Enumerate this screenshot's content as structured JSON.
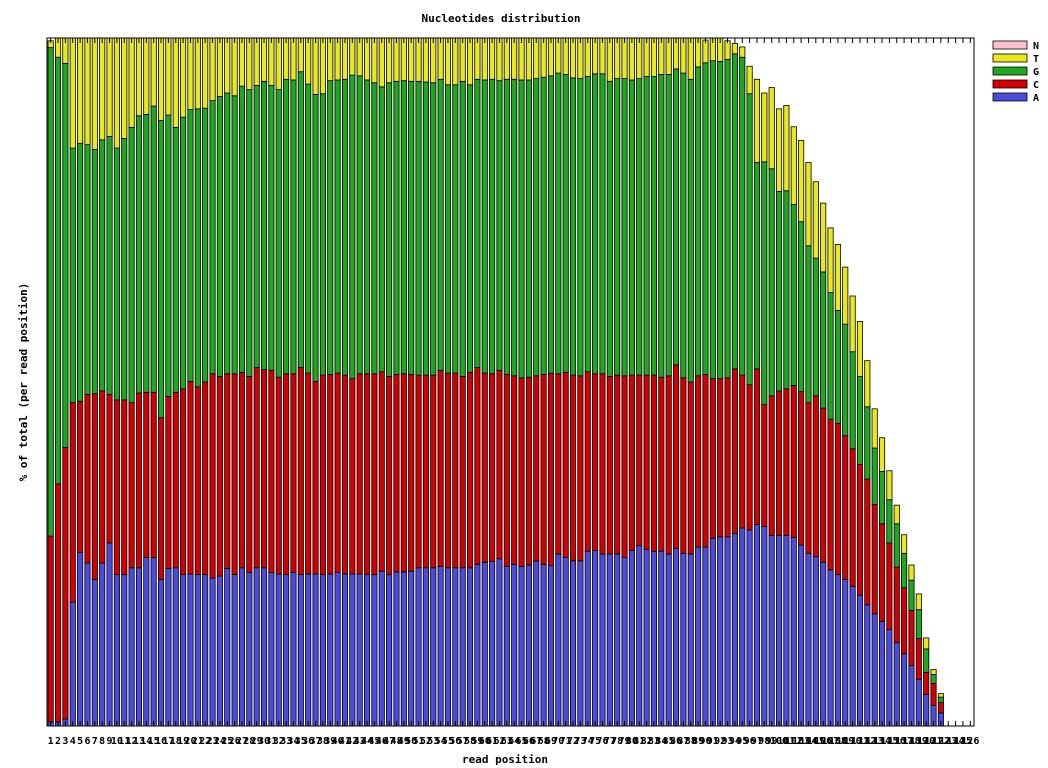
{
  "chart_data": {
    "type": "bar",
    "stacked": true,
    "title": "Nucleotides distribution",
    "xlabel": "read position",
    "ylabel": "% of total (per read position)",
    "ylim": [
      0,
      100
    ],
    "grid": false,
    "legend_placement": "top-right",
    "x": [
      1,
      2,
      3,
      4,
      5,
      6,
      7,
      8,
      9,
      10,
      11,
      12,
      13,
      14,
      15,
      16,
      17,
      18,
      19,
      20,
      21,
      22,
      23,
      24,
      25,
      26,
      27,
      28,
      29,
      30,
      31,
      32,
      33,
      34,
      35,
      36,
      37,
      38,
      39,
      40,
      41,
      42,
      43,
      44,
      45,
      46,
      47,
      48,
      49,
      50,
      51,
      52,
      53,
      54,
      55,
      56,
      57,
      58,
      59,
      60,
      61,
      62,
      63,
      64,
      65,
      66,
      67,
      68,
      69,
      70,
      71,
      72,
      73,
      74,
      75,
      76,
      77,
      78,
      79,
      80,
      81,
      82,
      83,
      84,
      85,
      86,
      87,
      88,
      89,
      90,
      91,
      92,
      93,
      94,
      95,
      96,
      97,
      98,
      99,
      100,
      101,
      102,
      103,
      104,
      105,
      106,
      107,
      108,
      109,
      110,
      111,
      112,
      113,
      114,
      115,
      116,
      117,
      118,
      119,
      120,
      121,
      122,
      123,
      124,
      125,
      126
    ],
    "series": [
      {
        "name": "A",
        "color": "#4b4bdf",
        "values": [
          0.6,
          0.6,
          1.0,
          18.0,
          25.2,
          23.7,
          21.3,
          23.7,
          26.6,
          22.0,
          22.0,
          23.0,
          23.0,
          24.5,
          24.5,
          21.3,
          22.9,
          23.0,
          22.0,
          22.1,
          22.0,
          22.0,
          21.5,
          21.8,
          22.9,
          22.0,
          23.0,
          22.3,
          23.0,
          23.0,
          22.3,
          22.1,
          22.0,
          22.3,
          22.0,
          22.1,
          22.1,
          22.0,
          22.1,
          22.3,
          22.1,
          22.1,
          22.1,
          22.0,
          22.0,
          22.5,
          22.0,
          22.4,
          22.4,
          22.5,
          23.0,
          23.0,
          23.0,
          23.2,
          23.0,
          23.0,
          23.0,
          23.0,
          23.5,
          23.8,
          23.9,
          24.3,
          23.2,
          23.5,
          23.2,
          23.4,
          24.0,
          23.5,
          23.3,
          25.0,
          24.5,
          24.0,
          24.0,
          25.4,
          25.5,
          25.0,
          25.0,
          25.0,
          24.5,
          25.5,
          26.2,
          25.7,
          25.4,
          25.4,
          25.0,
          25.8,
          25.1,
          25.0,
          26.0,
          26.0,
          27.3,
          27.5,
          27.5,
          28.0,
          28.8,
          28.5,
          29.3,
          29.0,
          27.7,
          27.7,
          27.7,
          27.4,
          26.3,
          25.1,
          24.6,
          23.8,
          22.7,
          22.0,
          21.3,
          20.3,
          19.0,
          17.6,
          16.3,
          15.2,
          14.0,
          12.1,
          10.5,
          8.8,
          6.8,
          4.6,
          3.0,
          1.9,
          0,
          0,
          0,
          0
        ]
      },
      {
        "name": "C",
        "color": "#d40000",
        "values": [
          27.0,
          34.6,
          39.5,
          29.0,
          22.0,
          24.5,
          27.0,
          25.0,
          21.6,
          25.4,
          25.4,
          24.0,
          25.4,
          24.0,
          24.0,
          23.5,
          25.0,
          25.5,
          27.0,
          28.0,
          27.3,
          28.0,
          29.7,
          29.0,
          28.3,
          29.2,
          28.4,
          28.5,
          29.1,
          28.8,
          29.4,
          28.6,
          29.2,
          28.9,
          30.1,
          29.2,
          28.0,
          29.0,
          29.0,
          29.0,
          28.9,
          28.4,
          29.1,
          29.2,
          29.2,
          29.0,
          28.8,
          28.7,
          28.8,
          28.6,
          28.0,
          28.0,
          28.0,
          28.5,
          28.3,
          28.3,
          27.8,
          28.4,
          28.6,
          27.5,
          27.3,
          27.4,
          27.9,
          27.4,
          27.4,
          27.3,
          26.9,
          27.6,
          28.0,
          26.2,
          26.9,
          27.0,
          26.9,
          26.1,
          25.7,
          26.2,
          25.8,
          26.0,
          26.4,
          25.5,
          24.8,
          25.3,
          25.6,
          25.3,
          25.9,
          26.7,
          25.5,
          25.0,
          24.9,
          25.1,
          23.2,
          23.0,
          23.1,
          23.9,
          22.2,
          21.1,
          22.6,
          17.7,
          20.3,
          21.0,
          21.3,
          22.1,
          22.3,
          21.9,
          23.4,
          22.4,
          21.9,
          22.0,
          20.9,
          20.0,
          19.0,
          18.3,
          15.9,
          14.2,
          12.6,
          11.0,
          9.6,
          8.0,
          5.9,
          3.2,
          3.2,
          1.5,
          0,
          0,
          0,
          0
        ]
      },
      {
        "name": "G",
        "color": "#1da81d",
        "values": [
          71.0,
          62.0,
          55.8,
          37.0,
          37.5,
          36.3,
          35.5,
          36.5,
          37.5,
          36.6,
          38.0,
          40.0,
          40.3,
          40.4,
          41.6,
          43.2,
          40.9,
          38.5,
          39.5,
          39.5,
          40.4,
          39.8,
          39.7,
          40.7,
          40.8,
          40.4,
          41.6,
          41.7,
          41.0,
          41.9,
          41.4,
          41.8,
          42.8,
          42.7,
          43.0,
          42.0,
          41.7,
          40.9,
          42.7,
          42.6,
          43.0,
          44.1,
          43.3,
          42.7,
          42.3,
          41.4,
          42.7,
          42.6,
          42.6,
          42.6,
          42.7,
          42.6,
          42.5,
          42.3,
          41.9,
          41.9,
          42.9,
          41.8,
          41.9,
          42.6,
          42.8,
          42.1,
          42.9,
          43.1,
          43.3,
          43.2,
          43.2,
          43.2,
          43.2,
          43.7,
          43.3,
          43.2,
          43.2,
          42.9,
          43.6,
          43.6,
          42.9,
          43.1,
          43.2,
          42.9,
          43.1,
          43.4,
          43.4,
          44.0,
          43.8,
          43.0,
          44.3,
          44.0,
          44.9,
          45.3,
          46.2,
          46.1,
          46.3,
          45.8,
          46.2,
          42.3,
          30.0,
          35.3,
          33.0,
          29.0,
          28.8,
          26.3,
          24.7,
          22.8,
          20.0,
          19.8,
          18.4,
          16.4,
          16.2,
          14.1,
          12.8,
          10.5,
          8.2,
          7.6,
          6.3,
          6.3,
          5.0,
          4.4,
          4.2,
          3.4,
          1.3,
          0.8,
          0,
          0,
          0,
          0
        ]
      },
      {
        "name": "T",
        "color": "#e8e81a",
        "values": [
          1.0,
          2.8,
          3.7,
          16.0,
          15.3,
          15.5,
          16.2,
          14.8,
          14.3,
          16.0,
          14.6,
          13.0,
          11.3,
          11.1,
          9.9,
          12.0,
          11.2,
          13.0,
          11.5,
          10.4,
          10.3,
          10.2,
          9.1,
          8.5,
          8.0,
          8.4,
          7.0,
          7.5,
          6.9,
          6.3,
          6.9,
          7.5,
          6.0,
          6.1,
          4.9,
          6.7,
          8.2,
          8.1,
          6.2,
          6.1,
          6.0,
          5.4,
          5.5,
          6.1,
          6.5,
          7.1,
          6.5,
          6.3,
          6.2,
          6.3,
          6.3,
          6.4,
          6.5,
          6.0,
          6.8,
          6.8,
          6.3,
          6.8,
          6.0,
          6.1,
          6.0,
          6.2,
          6.0,
          6.0,
          6.1,
          6.1,
          5.9,
          5.7,
          5.5,
          5.1,
          5.3,
          5.8,
          5.9,
          5.6,
          5.2,
          5.2,
          6.3,
          5.9,
          5.9,
          6.1,
          5.9,
          5.6,
          5.6,
          5.3,
          5.3,
          4.5,
          5.1,
          6.0,
          4.2,
          3.3,
          3.3,
          3.4,
          2.7,
          1.5,
          1.5,
          4.0,
          12.1,
          10.0,
          11.8,
          12.0,
          12.4,
          11.3,
          11.8,
          12.1,
          11.1,
          10.0,
          9.4,
          9.6,
          8.3,
          8.1,
          8.0,
          6.7,
          5.7,
          4.9,
          4.2,
          2.7,
          2.7,
          2.2,
          2.3,
          1.6,
          0.7,
          0.5,
          0,
          0,
          0,
          0
        ]
      },
      {
        "name": "N",
        "color": "#ffc0cb",
        "values": [
          0,
          0,
          0,
          0,
          0,
          0,
          0,
          0,
          0,
          0,
          0,
          0,
          0,
          0,
          0,
          0,
          0,
          0,
          0,
          0,
          0,
          0,
          0,
          0,
          0,
          0,
          0,
          0,
          0,
          0,
          0,
          0,
          0,
          0,
          0,
          0,
          0,
          0,
          0,
          0,
          0,
          0,
          0,
          0,
          0,
          0,
          0,
          0,
          0,
          0,
          0,
          0,
          0,
          0,
          0,
          0,
          0,
          0,
          0,
          0,
          0,
          0,
          0,
          0,
          0,
          0,
          0,
          0,
          0,
          0,
          0,
          0,
          0,
          0,
          0,
          0,
          0,
          0,
          0,
          0,
          0,
          0,
          0,
          0,
          0,
          0,
          0,
          0,
          0,
          0,
          0,
          0,
          0,
          0,
          0,
          0,
          0,
          0,
          0,
          0,
          0,
          0,
          0,
          0,
          0,
          0,
          0,
          0,
          0,
          0,
          0,
          0,
          0,
          0,
          0,
          0,
          0,
          0,
          0,
          0,
          0,
          0,
          0,
          0,
          0,
          0
        ]
      }
    ]
  }
}
